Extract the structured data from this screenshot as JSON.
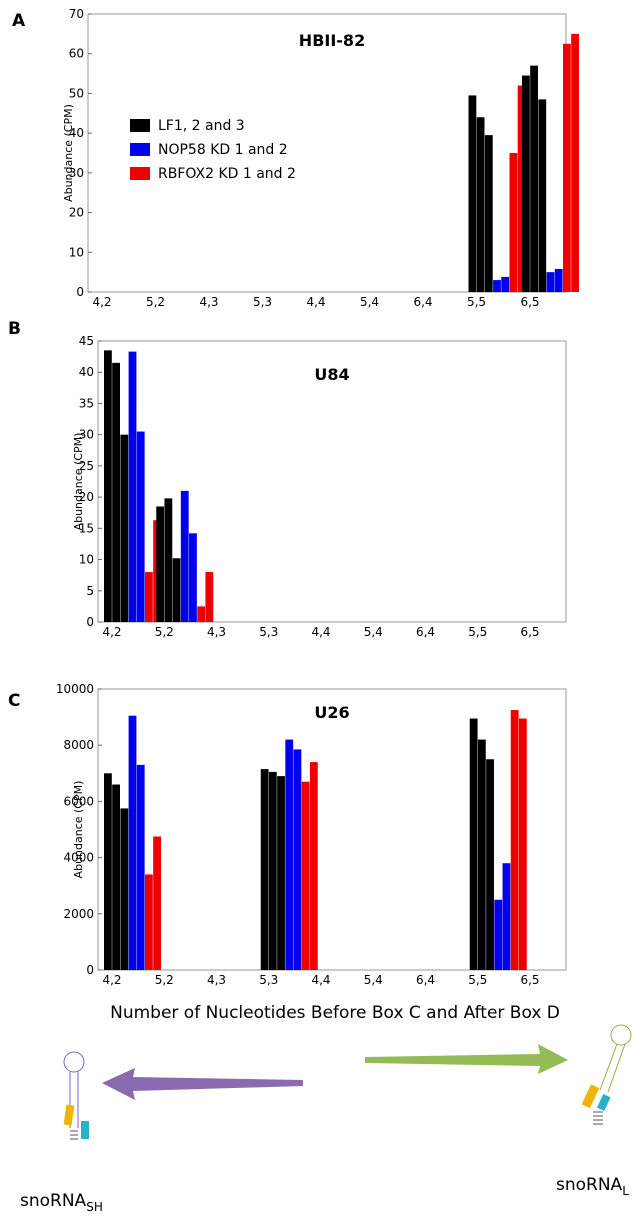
{
  "chart_data": [
    {
      "type": "bar",
      "panel": "A",
      "title": "HBII-82",
      "ylabel": "Abundance (CPM)",
      "categories": [
        "4,2",
        "5,2",
        "4,3",
        "5,3",
        "4,4",
        "5,4",
        "6,4",
        "5,5",
        "6,5"
      ],
      "series": [
        {
          "name": "LF1, 2 and 3",
          "color": "#000000",
          "values": [
            [
              0,
              0,
              0
            ],
            [
              0,
              0,
              0
            ],
            [
              0,
              0,
              0
            ],
            [
              0,
              0,
              0
            ],
            [
              0,
              0,
              0
            ],
            [
              0,
              0,
              0
            ],
            [
              0,
              0,
              0
            ],
            [
              49.5,
              44,
              39.5
            ],
            [
              54.5,
              57,
              48.5
            ]
          ]
        },
        {
          "name": "NOP58 KD 1 and 2",
          "color": "#0000ee",
          "values": [
            [
              0,
              0
            ],
            [
              0,
              0
            ],
            [
              0,
              0
            ],
            [
              0,
              0
            ],
            [
              0,
              0
            ],
            [
              0,
              0
            ],
            [
              0,
              0
            ],
            [
              3,
              3.8
            ],
            [
              5,
              5.8
            ]
          ]
        },
        {
          "name": "RBFOX2 KD 1 and 2",
          "color": "#ee0000",
          "values": [
            [
              0,
              0
            ],
            [
              0,
              0
            ],
            [
              0,
              0
            ],
            [
              0,
              0
            ],
            [
              0,
              0
            ],
            [
              0,
              0
            ],
            [
              0,
              0
            ],
            [
              35,
              52
            ],
            [
              62.5,
              65
            ]
          ]
        }
      ],
      "ylim": [
        0,
        70
      ],
      "yticks": [
        0,
        10,
        20,
        30,
        40,
        50,
        60,
        70
      ],
      "legend": "upper left"
    },
    {
      "type": "bar",
      "panel": "B",
      "title": "U84",
      "ylabel": "Abundance (CPM)",
      "categories": [
        "4,2",
        "5,2",
        "4,3",
        "5,3",
        "4,4",
        "5,4",
        "6,4",
        "5,5",
        "6,5"
      ],
      "series": [
        {
          "color": "#000000",
          "values": [
            [
              43.5,
              41.5,
              30
            ],
            [
              18.5,
              19.8,
              10.2
            ],
            [
              0,
              0,
              0
            ],
            [
              0,
              0,
              0
            ],
            [
              0,
              0,
              0
            ],
            [
              0,
              0,
              0
            ],
            [
              0,
              0,
              0
            ],
            [
              0,
              0,
              0
            ],
            [
              0,
              0,
              0
            ]
          ]
        },
        {
          "color": "#0000ee",
          "values": [
            [
              43.3,
              30.5
            ],
            [
              21,
              14.2
            ],
            [
              0,
              0
            ],
            [
              0,
              0
            ],
            [
              0,
              0
            ],
            [
              0,
              0
            ],
            [
              0,
              0
            ],
            [
              0,
              0
            ],
            [
              0,
              0
            ]
          ]
        },
        {
          "color": "#ee0000",
          "values": [
            [
              8,
              16.3
            ],
            [
              2.5,
              8
            ],
            [
              0,
              0
            ],
            [
              0,
              0
            ],
            [
              0,
              0
            ],
            [
              0,
              0
            ],
            [
              0,
              0
            ],
            [
              0,
              0
            ],
            [
              0,
              0
            ]
          ]
        }
      ],
      "ylim": [
        0,
        45
      ],
      "yticks": [
        0,
        5,
        10,
        15,
        20,
        25,
        30,
        35,
        40,
        45
      ]
    },
    {
      "type": "bar",
      "panel": "C",
      "title": "U26",
      "ylabel": "Abundance (CPM)",
      "xlabel": "Number of Nucleotides Before Box C and After Box D",
      "categories": [
        "4,2",
        "5,2",
        "4,3",
        "5,3",
        "4,4",
        "5,4",
        "6,4",
        "5,5",
        "6,5"
      ],
      "series": [
        {
          "color": "#000000",
          "values": [
            [
              7000,
              6600,
              5750
            ],
            [
              0,
              0,
              0
            ],
            [
              0,
              0,
              0
            ],
            [
              7150,
              7050,
              6900
            ],
            [
              0,
              0,
              0
            ],
            [
              0,
              0,
              0
            ],
            [
              0,
              0,
              0
            ],
            [
              8950,
              8200,
              7500
            ],
            [
              0,
              0,
              0
            ]
          ]
        },
        {
          "color": "#0000ee",
          "values": [
            [
              9050,
              7300
            ],
            [
              0,
              0
            ],
            [
              0,
              0
            ],
            [
              8200,
              7850
            ],
            [
              0,
              0
            ],
            [
              0,
              0
            ],
            [
              0,
              0
            ],
            [
              2500,
              3800
            ],
            [
              0,
              0
            ]
          ]
        },
        {
          "color": "#ee0000",
          "values": [
            [
              3400,
              4750
            ],
            [
              0,
              0
            ],
            [
              0,
              0
            ],
            [
              6700,
              7400
            ],
            [
              0,
              0
            ],
            [
              0,
              0
            ],
            [
              0,
              0
            ],
            [
              9250,
              8950
            ],
            [
              0,
              0
            ]
          ]
        }
      ],
      "ylim": [
        0,
        10000
      ],
      "yticks": [
        0,
        2000,
        4000,
        6000,
        8000,
        10000
      ]
    }
  ],
  "diagram": {
    "left_label": {
      "text": "snoRNA",
      "sub": "SH"
    },
    "right_label": {
      "text": "snoRNA",
      "sub": "L"
    }
  }
}
